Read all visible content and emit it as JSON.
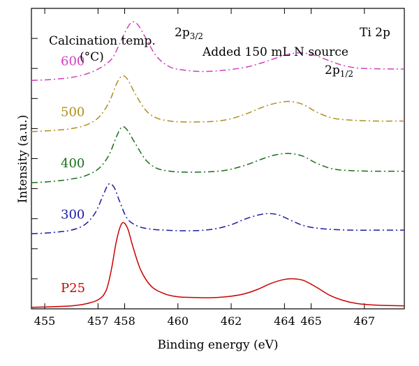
{
  "chart_data": {
    "type": "line",
    "title": "",
    "xlabel": "Binding energy (eV)",
    "ylabel": "Intensity (a.u.)",
    "xlim": [
      454.5,
      468.5
    ],
    "ylim": [
      0,
      10
    ],
    "x_reversed": false,
    "x_ticks": [
      "455",
      "457",
      "458",
      "460",
      "462",
      "464",
      "465",
      "467"
    ],
    "y_ticks_labeled": false,
    "grid": false,
    "annotations": {
      "legend_title_line1": "Calcination temp.",
      "legend_title_line2": "(°C)",
      "peak_3_2_base": "2p",
      "peak_3_2_sub": "3/2",
      "peak_1_2_base": "2p",
      "peak_1_2_sub": "1/2",
      "condition": "Added 150 mL N source",
      "region": "Ti 2p"
    },
    "series": [
      {
        "name": "P25",
        "color": "#cc0000",
        "dash": "solid",
        "points": [
          [
            454.5,
            0.05
          ],
          [
            455,
            0.06
          ],
          [
            455.5,
            0.08
          ],
          [
            456,
            0.1
          ],
          [
            456.5,
            0.16
          ],
          [
            457,
            0.3
          ],
          [
            457.3,
            0.6
          ],
          [
            457.5,
            1.3
          ],
          [
            457.7,
            2.3
          ],
          [
            457.9,
            2.85
          ],
          [
            458.1,
            2.7
          ],
          [
            458.3,
            2.1
          ],
          [
            458.6,
            1.3
          ],
          [
            459,
            0.75
          ],
          [
            459.5,
            0.5
          ],
          [
            460,
            0.4
          ],
          [
            460.5,
            0.38
          ],
          [
            461,
            0.37
          ],
          [
            461.5,
            0.38
          ],
          [
            462,
            0.42
          ],
          [
            462.5,
            0.5
          ],
          [
            463,
            0.65
          ],
          [
            463.5,
            0.85
          ],
          [
            464,
            0.98
          ],
          [
            464.3,
            1.0
          ],
          [
            464.7,
            0.95
          ],
          [
            465.2,
            0.72
          ],
          [
            465.7,
            0.45
          ],
          [
            466.2,
            0.28
          ],
          [
            466.7,
            0.18
          ],
          [
            467.5,
            0.12
          ],
          [
            468.5,
            0.1
          ]
        ]
      },
      {
        "name": "300",
        "color": "#1a1aa6",
        "dash": "dashdot",
        "points": [
          [
            454.5,
            2.5
          ],
          [
            455,
            2.52
          ],
          [
            455.5,
            2.56
          ],
          [
            456,
            2.62
          ],
          [
            456.5,
            2.8
          ],
          [
            456.9,
            3.2
          ],
          [
            457.2,
            3.8
          ],
          [
            457.4,
            4.15
          ],
          [
            457.6,
            4.05
          ],
          [
            457.8,
            3.6
          ],
          [
            458.1,
            3.0
          ],
          [
            458.5,
            2.75
          ],
          [
            459,
            2.65
          ],
          [
            459.5,
            2.62
          ],
          [
            460,
            2.6
          ],
          [
            460.5,
            2.6
          ],
          [
            461,
            2.62
          ],
          [
            461.5,
            2.68
          ],
          [
            462,
            2.8
          ],
          [
            462.5,
            2.98
          ],
          [
            463,
            3.12
          ],
          [
            463.4,
            3.17
          ],
          [
            463.8,
            3.12
          ],
          [
            464.3,
            2.92
          ],
          [
            464.8,
            2.75
          ],
          [
            465.5,
            2.66
          ],
          [
            466.5,
            2.62
          ],
          [
            467.5,
            2.62
          ],
          [
            468.5,
            2.62
          ]
        ]
      },
      {
        "name": "400",
        "color": "#1a6e1a",
        "dash": "dashdot",
        "points": [
          [
            454.5,
            4.2
          ],
          [
            455,
            4.22
          ],
          [
            455.5,
            4.26
          ],
          [
            456,
            4.32
          ],
          [
            456.5,
            4.42
          ],
          [
            457,
            4.65
          ],
          [
            457.4,
            5.1
          ],
          [
            457.7,
            5.75
          ],
          [
            457.9,
            6.05
          ],
          [
            458.1,
            5.95
          ],
          [
            458.4,
            5.5
          ],
          [
            458.8,
            4.95
          ],
          [
            459.2,
            4.68
          ],
          [
            459.7,
            4.58
          ],
          [
            460.2,
            4.55
          ],
          [
            460.8,
            4.55
          ],
          [
            461.5,
            4.58
          ],
          [
            462,
            4.65
          ],
          [
            462.6,
            4.8
          ],
          [
            463.2,
            5.0
          ],
          [
            463.7,
            5.13
          ],
          [
            464.2,
            5.17
          ],
          [
            464.7,
            5.08
          ],
          [
            465.2,
            4.85
          ],
          [
            465.8,
            4.66
          ],
          [
            466.5,
            4.6
          ],
          [
            467.5,
            4.58
          ],
          [
            468.5,
            4.58
          ]
        ]
      },
      {
        "name": "500",
        "color": "#b08d1a",
        "dash": "dashdot",
        "points": [
          [
            454.5,
            5.9
          ],
          [
            455,
            5.92
          ],
          [
            455.5,
            5.95
          ],
          [
            456,
            6.0
          ],
          [
            456.5,
            6.1
          ],
          [
            457,
            6.35
          ],
          [
            457.4,
            6.85
          ],
          [
            457.7,
            7.5
          ],
          [
            457.9,
            7.75
          ],
          [
            458.1,
            7.65
          ],
          [
            458.4,
            7.15
          ],
          [
            458.8,
            6.6
          ],
          [
            459.2,
            6.35
          ],
          [
            459.7,
            6.25
          ],
          [
            460.2,
            6.22
          ],
          [
            460.8,
            6.22
          ],
          [
            461.5,
            6.25
          ],
          [
            462,
            6.33
          ],
          [
            462.6,
            6.5
          ],
          [
            463.2,
            6.72
          ],
          [
            463.7,
            6.85
          ],
          [
            464.2,
            6.9
          ],
          [
            464.7,
            6.8
          ],
          [
            465.2,
            6.55
          ],
          [
            465.8,
            6.35
          ],
          [
            466.5,
            6.28
          ],
          [
            467.5,
            6.25
          ],
          [
            468.5,
            6.25
          ]
        ]
      },
      {
        "name": "600",
        "color": "#d040c0",
        "dash": "dashdot",
        "points": [
          [
            454.5,
            7.6
          ],
          [
            455,
            7.62
          ],
          [
            455.5,
            7.65
          ],
          [
            456,
            7.7
          ],
          [
            456.5,
            7.8
          ],
          [
            457,
            7.98
          ],
          [
            457.5,
            8.3
          ],
          [
            457.8,
            8.8
          ],
          [
            458.1,
            9.35
          ],
          [
            458.3,
            9.55
          ],
          [
            458.5,
            9.45
          ],
          [
            458.8,
            9.0
          ],
          [
            459.2,
            8.4
          ],
          [
            459.7,
            8.05
          ],
          [
            460.2,
            7.95
          ],
          [
            460.8,
            7.9
          ],
          [
            461.5,
            7.92
          ],
          [
            462,
            7.97
          ],
          [
            462.6,
            8.05
          ],
          [
            463.2,
            8.2
          ],
          [
            463.7,
            8.35
          ],
          [
            464.2,
            8.48
          ],
          [
            464.6,
            8.52
          ],
          [
            465.1,
            8.45
          ],
          [
            465.7,
            8.25
          ],
          [
            466.3,
            8.08
          ],
          [
            467,
            8.0
          ],
          [
            468.5,
            7.98
          ]
        ]
      }
    ]
  }
}
